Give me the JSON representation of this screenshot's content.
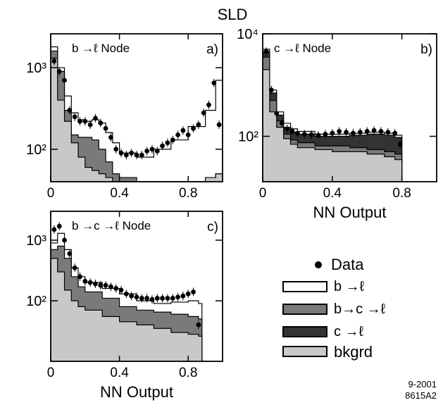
{
  "figure": {
    "title": "SLD",
    "stamp_line1": "9-2001",
    "stamp_line2": "8615A2",
    "colors": {
      "b_to_l": "#ffffff",
      "b_to_c_to_l": "#7a7a7a",
      "c_to_l": "#333333",
      "bkgrd": "#c8c8c8",
      "data": "#000000"
    }
  },
  "legend": {
    "data": "Data",
    "b_to_l": "b →ℓ",
    "b_to_c_to_l": "b→c →ℓ",
    "c_to_l": "c →ℓ",
    "bkgrd": "bkgrd"
  },
  "chart_data": [
    {
      "type": "area",
      "panel": "a)",
      "title": "b →ℓ Node",
      "xlabel": "",
      "ylabel": "",
      "y_scale": "log",
      "xlim": [
        0,
        1
      ],
      "ylim": [
        40,
        2600
      ],
      "x_ticks": [
        "0",
        "0.4",
        "0.8"
      ],
      "y_ticks": [
        "10³",
        "10²"
      ],
      "series": [
        {
          "name": "bkgrd",
          "x": [
            0,
            0.04,
            0.08,
            0.12,
            0.16,
            0.2,
            0.24,
            0.28,
            0.32,
            0.36,
            0.4,
            0.5,
            0.6,
            0.7,
            0.8,
            0.9,
            0.96
          ],
          "values": [
            1300,
            400,
            220,
            120,
            80,
            60,
            55,
            50,
            45,
            40,
            40,
            40,
            40,
            40,
            40,
            45,
            50
          ]
        },
        {
          "name": "b→c →ℓ",
          "x": [
            0,
            0.04,
            0.08,
            0.12,
            0.16,
            0.2,
            0.24,
            0.28,
            0.32,
            0.36,
            0.4,
            0.5,
            0.6,
            0.7,
            0.8,
            0.9,
            0.96
          ],
          "values": [
            1600,
            900,
            300,
            150,
            140,
            140,
            130,
            100,
            70,
            50,
            45,
            40,
            40,
            40,
            40,
            45,
            50
          ]
        },
        {
          "name": "b →ℓ",
          "x": [
            0,
            0.04,
            0.08,
            0.12,
            0.16,
            0.2,
            0.24,
            0.28,
            0.32,
            0.36,
            0.4,
            0.5,
            0.6,
            0.7,
            0.8,
            0.9,
            0.96
          ],
          "values": [
            1800,
            1000,
            450,
            280,
            230,
            220,
            230,
            210,
            160,
            120,
            90,
            80,
            100,
            130,
            190,
            300,
            700
          ]
        },
        {
          "name": "Data",
          "x": [
            0.02,
            0.05,
            0.08,
            0.11,
            0.14,
            0.17,
            0.2,
            0.23,
            0.26,
            0.29,
            0.32,
            0.35,
            0.38,
            0.41,
            0.44,
            0.47,
            0.5,
            0.53,
            0.56,
            0.59,
            0.62,
            0.65,
            0.68,
            0.71,
            0.74,
            0.77,
            0.8,
            0.83,
            0.86,
            0.89,
            0.92,
            0.95,
            0.98
          ],
          "values": [
            1200,
            900,
            700,
            300,
            250,
            220,
            220,
            200,
            240,
            210,
            180,
            140,
            100,
            90,
            85,
            90,
            85,
            85,
            95,
            100,
            95,
            110,
            120,
            130,
            150,
            170,
            150,
            180,
            200,
            280,
            350,
            650,
            200
          ]
        }
      ]
    },
    {
      "type": "area",
      "panel": "b)",
      "title": "c →ℓ Node",
      "xlabel": "NN Output",
      "ylabel": "",
      "y_scale": "log",
      "xlim": [
        0,
        1
      ],
      "ylim": [
        13,
        10000
      ],
      "x_ticks": [
        "0",
        "0.4",
        "0.8"
      ],
      "y_ticks": [
        "10⁴",
        "10²"
      ],
      "series": [
        {
          "name": "bkgrd",
          "x": [
            0,
            0.04,
            0.08,
            0.12,
            0.16,
            0.2,
            0.3,
            0.4,
            0.5,
            0.6,
            0.7,
            0.76,
            0.8
          ],
          "values": [
            2000,
            300,
            150,
            90,
            70,
            60,
            55,
            50,
            50,
            45,
            40,
            35,
            13
          ]
        },
        {
          "name": "b→c →ℓ",
          "x": [
            0,
            0.04,
            0.08,
            0.12,
            0.16,
            0.2,
            0.3,
            0.4,
            0.5,
            0.6,
            0.7,
            0.76,
            0.8
          ],
          "values": [
            3500,
            500,
            200,
            110,
            85,
            75,
            65,
            65,
            60,
            55,
            50,
            45,
            13
          ]
        },
        {
          "name": "c →ℓ",
          "x": [
            0,
            0.04,
            0.08,
            0.12,
            0.16,
            0.2,
            0.3,
            0.4,
            0.5,
            0.6,
            0.7,
            0.76,
            0.8
          ],
          "values": [
            4500,
            700,
            260,
            150,
            120,
            110,
            100,
            100,
            105,
            110,
            105,
            95,
            13
          ]
        },
        {
          "name": "b →ℓ",
          "x": [
            0,
            0.04,
            0.08,
            0.12,
            0.16,
            0.2,
            0.3,
            0.4,
            0.5,
            0.6,
            0.7,
            0.76,
            0.8
          ],
          "values": [
            5000,
            800,
            300,
            180,
            140,
            125,
            110,
            110,
            115,
            120,
            115,
            105,
            13
          ]
        },
        {
          "name": "Data",
          "x": [
            0.02,
            0.05,
            0.08,
            0.11,
            0.14,
            0.17,
            0.2,
            0.24,
            0.28,
            0.32,
            0.36,
            0.4,
            0.44,
            0.48,
            0.52,
            0.56,
            0.6,
            0.64,
            0.68,
            0.72,
            0.76,
            0.79
          ],
          "values": [
            4500,
            800,
            280,
            180,
            140,
            125,
            115,
            110,
            108,
            105,
            110,
            115,
            125,
            120,
            115,
            120,
            125,
            130,
            125,
            120,
            115,
            70
          ]
        }
      ]
    },
    {
      "type": "area",
      "panel": "c)",
      "title": "b →c →ℓ Node",
      "xlabel": "NN Output",
      "ylabel": "",
      "y_scale": "log",
      "xlim": [
        0,
        1
      ],
      "ylim": [
        10,
        3000
      ],
      "x_ticks": [
        "0",
        "0.4",
        "0.8"
      ],
      "y_ticks": [
        "10³",
        "10²"
      ],
      "series": [
        {
          "name": "bkgrd",
          "x": [
            0,
            0.04,
            0.08,
            0.12,
            0.16,
            0.2,
            0.3,
            0.4,
            0.5,
            0.6,
            0.7,
            0.8,
            0.86,
            0.88
          ],
          "values": [
            500,
            300,
            150,
            100,
            80,
            70,
            55,
            45,
            40,
            35,
            30,
            28,
            26,
            10
          ]
        },
        {
          "name": "b→c →ℓ",
          "x": [
            0,
            0.04,
            0.08,
            0.12,
            0.16,
            0.2,
            0.3,
            0.4,
            0.5,
            0.6,
            0.7,
            0.8,
            0.86,
            0.88
          ],
          "values": [
            700,
            800,
            500,
            250,
            170,
            140,
            110,
            80,
            70,
            65,
            60,
            55,
            50,
            10
          ]
        },
        {
          "name": "b →ℓ",
          "x": [
            0,
            0.04,
            0.08,
            0.12,
            0.16,
            0.2,
            0.3,
            0.4,
            0.5,
            0.6,
            0.7,
            0.8,
            0.86,
            0.88
          ],
          "values": [
            900,
            1300,
            700,
            350,
            250,
            200,
            160,
            130,
            100,
            90,
            95,
            100,
            90,
            10
          ]
        },
        {
          "name": "Data",
          "x": [
            0.02,
            0.05,
            0.08,
            0.11,
            0.14,
            0.17,
            0.2,
            0.23,
            0.26,
            0.29,
            0.32,
            0.35,
            0.38,
            0.41,
            0.44,
            0.47,
            0.5,
            0.53,
            0.56,
            0.59,
            0.62,
            0.65,
            0.68,
            0.71,
            0.74,
            0.77,
            0.8,
            0.83,
            0.86
          ],
          "values": [
            1500,
            1700,
            1000,
            600,
            350,
            250,
            210,
            200,
            190,
            180,
            180,
            170,
            160,
            150,
            130,
            120,
            115,
            110,
            110,
            105,
            110,
            110,
            110,
            110,
            115,
            120,
            130,
            140,
            40
          ]
        }
      ]
    }
  ]
}
